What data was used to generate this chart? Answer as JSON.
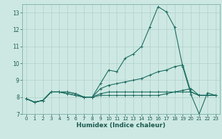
{
  "xlabel": "Humidex (Indice chaleur)",
  "bg_color": "#cde8e2",
  "grid_color": "#b0cfc9",
  "line_color": "#1a6b60",
  "xlim": [
    -0.5,
    23.5
  ],
  "ylim": [
    7,
    13.5
  ],
  "yticks": [
    7,
    8,
    9,
    10,
    11,
    12,
    13
  ],
  "xticks": [
    0,
    1,
    2,
    3,
    4,
    5,
    6,
    7,
    8,
    9,
    10,
    11,
    12,
    13,
    14,
    15,
    16,
    17,
    18,
    19,
    20,
    21,
    22,
    23
  ],
  "series": [
    [
      7.9,
      7.7,
      7.8,
      8.3,
      8.3,
      8.3,
      8.2,
      8.0,
      8.0,
      8.8,
      9.6,
      9.5,
      10.3,
      10.55,
      11.0,
      12.15,
      13.35,
      13.05,
      12.15,
      9.8,
      8.15,
      7.0,
      8.25,
      8.1
    ],
    [
      7.9,
      7.7,
      7.8,
      8.3,
      8.3,
      8.3,
      8.2,
      8.0,
      8.0,
      8.5,
      8.7,
      8.8,
      8.9,
      9.0,
      9.1,
      9.3,
      9.5,
      9.6,
      9.8,
      9.9,
      8.3,
      8.1,
      8.1,
      8.1
    ],
    [
      7.9,
      7.7,
      7.8,
      8.3,
      8.3,
      8.2,
      8.1,
      8.0,
      8.0,
      8.2,
      8.3,
      8.3,
      8.3,
      8.3,
      8.3,
      8.3,
      8.3,
      8.3,
      8.3,
      8.3,
      8.3,
      8.1,
      8.1,
      8.1
    ],
    [
      7.9,
      7.7,
      7.8,
      8.3,
      8.3,
      8.2,
      8.1,
      8.0,
      8.0,
      8.1,
      8.1,
      8.1,
      8.1,
      8.1,
      8.1,
      8.1,
      8.1,
      8.2,
      8.3,
      8.4,
      8.5,
      8.1,
      8.1,
      8.1
    ]
  ]
}
